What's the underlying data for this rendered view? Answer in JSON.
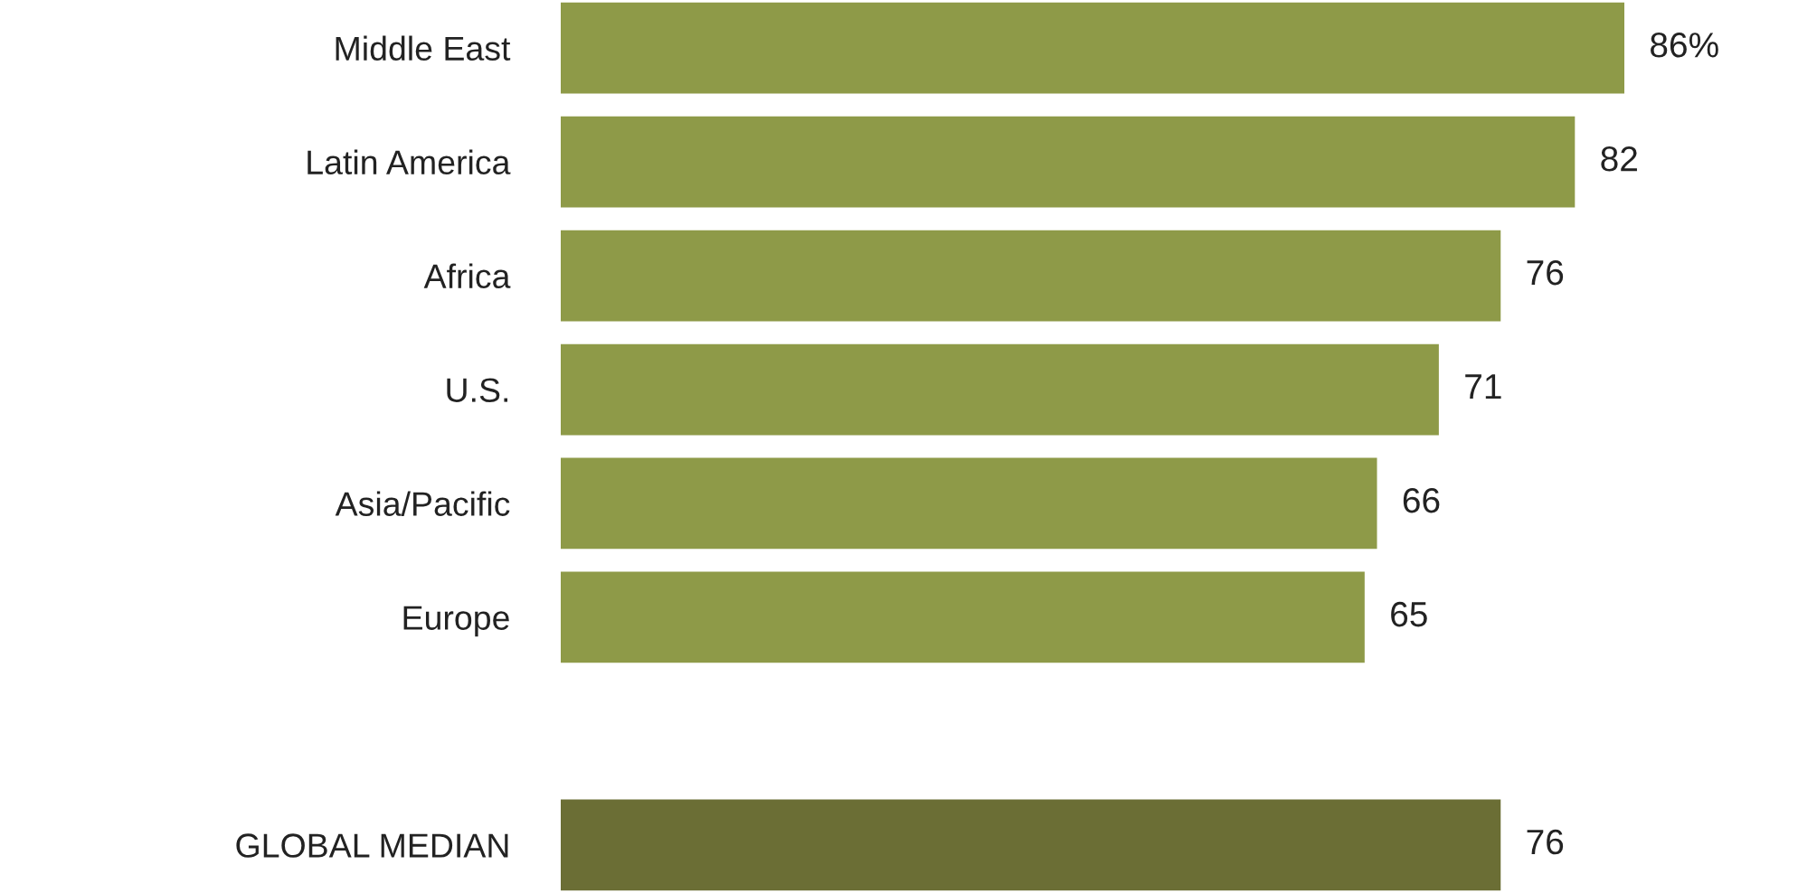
{
  "chart_data": {
    "type": "bar",
    "orientation": "horizontal",
    "categories": [
      "Middle East",
      "Latin America",
      "Africa",
      "U.S.",
      "Asia/Pacific",
      "Europe",
      null,
      "GLOBAL MEDIAN"
    ],
    "values": [
      86,
      82,
      76,
      71,
      66,
      65,
      null,
      76
    ],
    "value_labels": [
      "86%",
      "82",
      "76",
      "71",
      "66",
      "65",
      null,
      "76"
    ],
    "colors": [
      "#8e9a48",
      "#8e9a48",
      "#8e9a48",
      "#8e9a48",
      "#8e9a48",
      "#8e9a48",
      "#8e9a48",
      "#6b6e35"
    ],
    "tick_labels": "y",
    "grid": false,
    "legend": false
  }
}
